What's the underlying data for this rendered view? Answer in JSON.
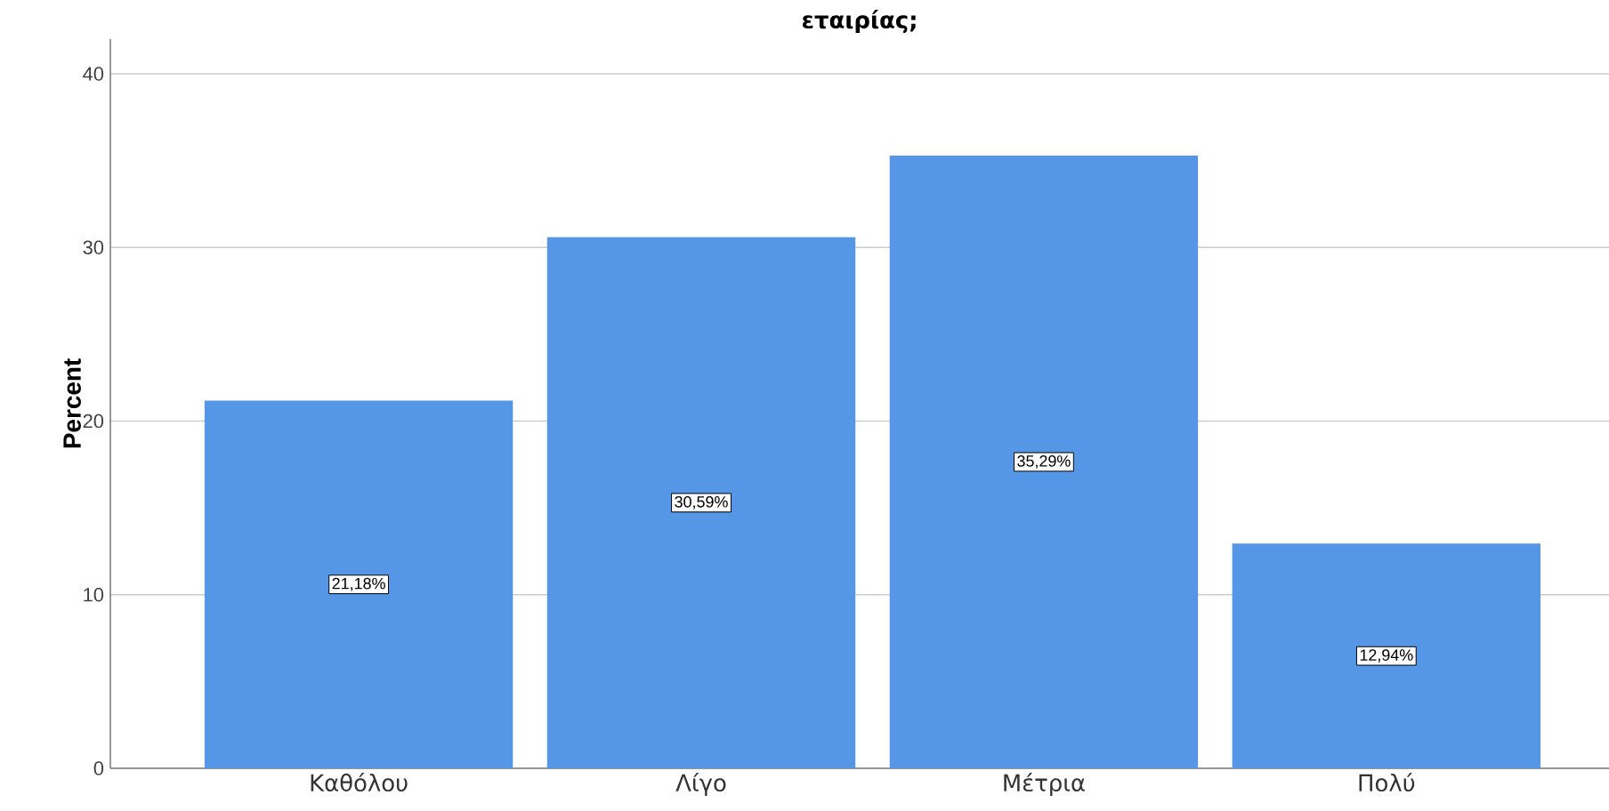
{
  "chart_data": {
    "type": "bar",
    "title": "εταιρίας;",
    "ylabel": "Percent",
    "categories": [
      "Καθόλου",
      "Λίγο",
      "Μέτρια",
      "Πολύ"
    ],
    "values": [
      21.18,
      30.59,
      35.29,
      12.94
    ],
    "value_labels": [
      "21,18%",
      "30,59%",
      "35,29%",
      "12,94%"
    ],
    "color": "#5596e6",
    "ylim": [
      0,
      42
    ],
    "yticks": [
      0,
      10,
      20,
      30,
      40
    ],
    "grid": "y"
  }
}
